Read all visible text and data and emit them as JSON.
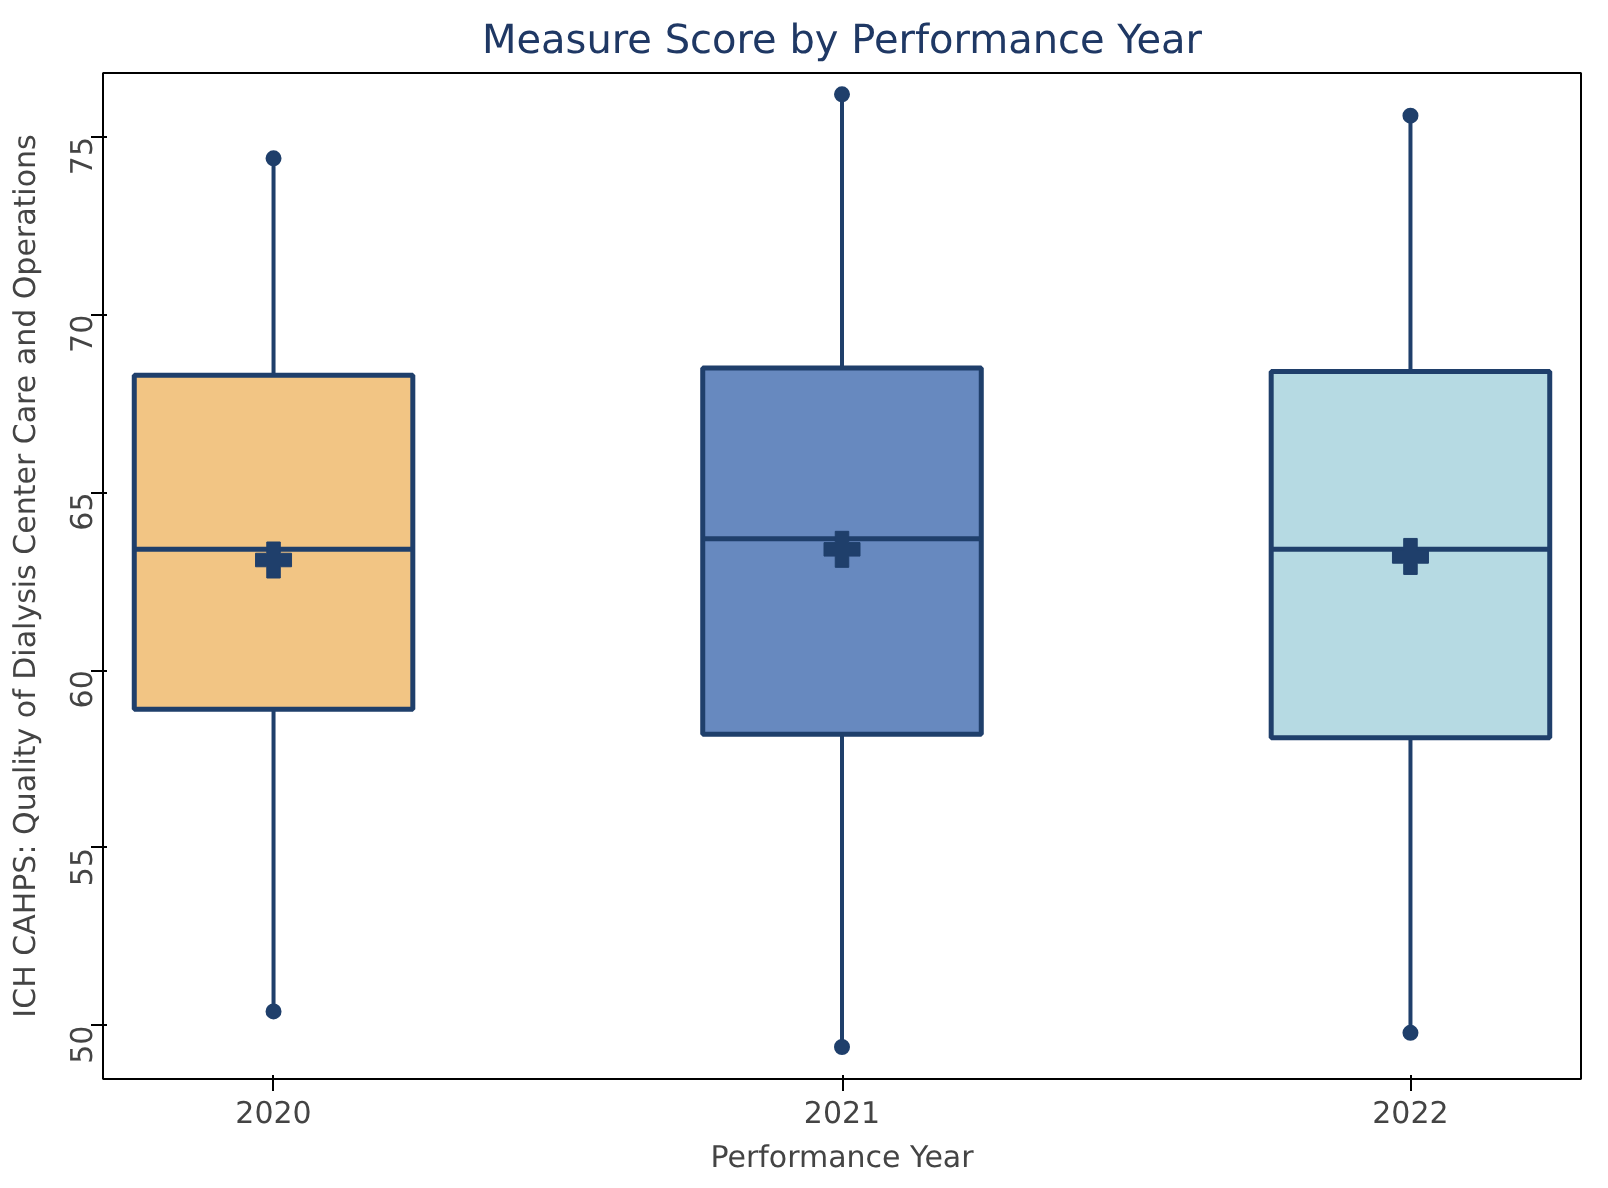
{
  "chart_data": {
    "type": "box",
    "title": "Measure Score by Performance Year",
    "xlabel": "Performance Year",
    "ylabel": "ICH CAHPS: Quality of Dialysis Center Care and Operations",
    "categories": [
      "2020",
      "2021",
      "2022"
    ],
    "boxes": [
      {
        "low": 50.4,
        "q1": 58.9,
        "median": 63.4,
        "q3": 68.3,
        "high": 74.4,
        "mean": 63.1,
        "outliers": [
          50.4,
          74.4
        ]
      },
      {
        "low": 49.4,
        "q1": 58.2,
        "median": 63.7,
        "q3": 68.5,
        "high": 76.2,
        "mean": 63.4,
        "outliers": [
          49.4,
          76.2
        ]
      },
      {
        "low": 49.8,
        "q1": 58.1,
        "median": 63.4,
        "q3": 68.4,
        "high": 75.6,
        "mean": 63.2,
        "outliers": [
          49.8,
          75.6
        ]
      }
    ],
    "colors": [
      "#f2c584",
      "#6789bf",
      "#b6dae3"
    ],
    "ylim": [
      48.5,
      76.8
    ],
    "yticks": [
      50,
      55,
      60,
      65,
      70,
      75
    ],
    "grid": false
  }
}
